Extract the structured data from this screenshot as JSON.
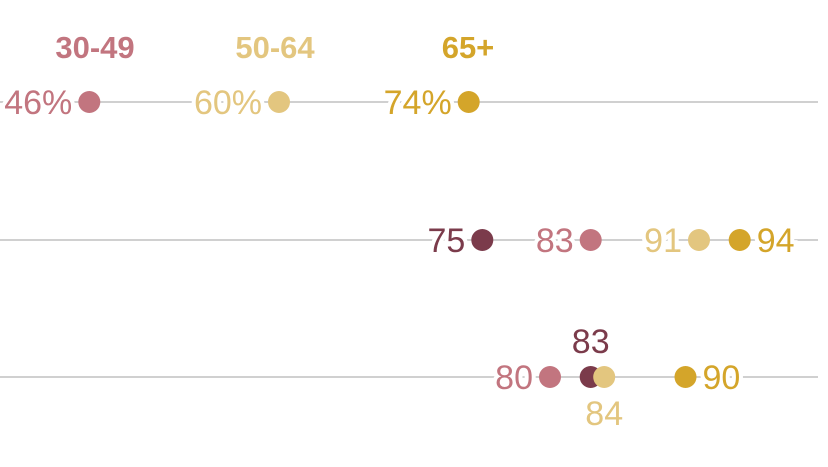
{
  "chart_data": {
    "type": "dot-plot",
    "series": [
      {
        "key": "s18",
        "name": "",
        "color": "#7b3b4b"
      },
      {
        "key": "s30",
        "name": "30-49",
        "color": "#c2757f"
      },
      {
        "key": "s50",
        "name": "50-64",
        "color": "#e3c67f"
      },
      {
        "key": "s65",
        "name": "65+",
        "color": "#d4a52a"
      }
    ],
    "rows": [
      {
        "values": {
          "s30": 46,
          "s50": 60,
          "s65": 74
        },
        "labels": {
          "s30": "46%",
          "s50": "60%",
          "s65": "74%"
        }
      },
      {
        "values": {
          "s18": 75,
          "s30": 83,
          "s50": 91,
          "s65": 94
        },
        "labels": {
          "s18": "75",
          "s30": "83",
          "s50": "91",
          "s65": "94"
        }
      },
      {
        "values": {
          "s18": 83,
          "s30": 80,
          "s50": 84,
          "s65": 90
        },
        "labels": {
          "s18": "83",
          "s30": "80",
          "s50": "84",
          "s65": "90"
        }
      }
    ],
    "x_range": [
      0,
      100
    ],
    "grid": false,
    "legend_position": "top"
  }
}
